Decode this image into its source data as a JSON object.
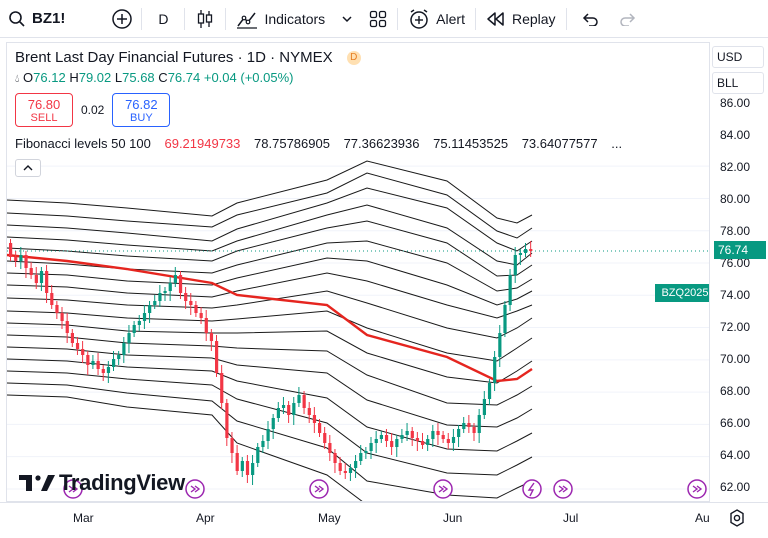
{
  "toolbar": {
    "symbol": "BZ1!",
    "interval": "D",
    "indicators_label": "Indicators",
    "alert_label": "Alert",
    "replay_label": "Replay"
  },
  "legend": {
    "title": "Brent Last Day Financial Futures · 1D · NYMEX",
    "badge": "D",
    "open_label": "O",
    "open": "76.12",
    "high_label": "H",
    "high": "79.02",
    "low_label": "L",
    "low": "75.68",
    "close_label": "C",
    "close": "76.74",
    "change": "+0.04 (+0.05%)"
  },
  "trade": {
    "sell_price": "76.80",
    "sell_label": "SELL",
    "spread": "0.02",
    "buy_price": "76.82",
    "buy_label": "BUY"
  },
  "fibonacci": {
    "name": "Fibonacci levels 50 100",
    "v1": "69.21949733",
    "v2": "78.75786905",
    "v3": "77.36623936",
    "v4": "75.11453525",
    "v5": "73.64077577",
    "more": "..."
  },
  "logo_text": "TradingView",
  "price_axis": {
    "currency": "USD",
    "unit": "BLL",
    "ticks": [
      "86.00",
      "84.00",
      "82.00",
      "80.00",
      "78.00",
      "76.00",
      "74.00",
      "72.00",
      "70.00",
      "68.00",
      "66.00",
      "64.00",
      "62.00"
    ],
    "last_price": "76.74",
    "symbol_tag": "BZQ2025"
  },
  "time_axis": {
    "labels": [
      "Mar",
      "Apr",
      "May",
      "Jun",
      "Jul",
      "Au"
    ]
  },
  "colors": {
    "up": "#089981",
    "down": "#f23645",
    "midline": "#e5251f",
    "band": "#1a1a1a"
  },
  "chart_data": {
    "type": "candlestick",
    "y_range": [
      61,
      88
    ],
    "x_labels": [
      "Mar",
      "Apr",
      "May",
      "Jun",
      "Jul",
      "Au"
    ],
    "last_close": 76.74
  }
}
